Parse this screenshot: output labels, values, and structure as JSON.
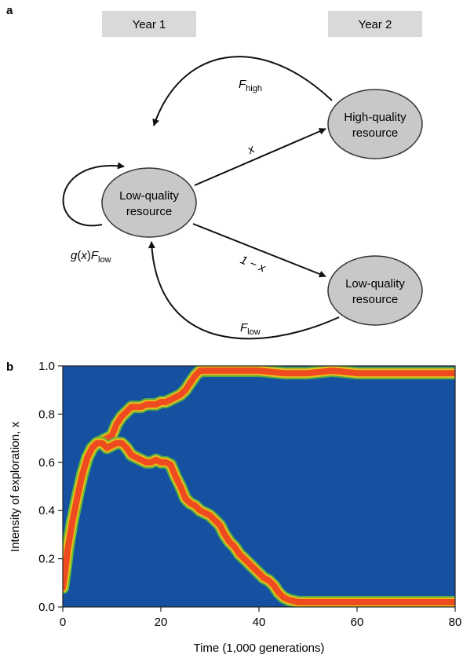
{
  "panel_a": {
    "label": "a",
    "year1": "Year 1",
    "year2": "Year 2",
    "nodes": {
      "low_left": [
        "Low-quality",
        "resource"
      ],
      "high_right": [
        "High-quality",
        "resource"
      ],
      "low_right": [
        "Low-quality",
        "resource"
      ]
    },
    "edges": {
      "f_high": {
        "main": "F",
        "sub": "high"
      },
      "x": "x",
      "one_minus_x": "1 − x",
      "f_low": {
        "main": "F",
        "sub": "low"
      },
      "self_loop": {
        "g": "g",
        "paren_open": "(",
        "x": "x",
        "paren_close": ")",
        "main": "F",
        "sub": "low"
      }
    },
    "colors": {
      "node_fill": "#c8c8c8",
      "year_box": "#d9d9d9"
    }
  },
  "panel_b": {
    "label": "b",
    "colors": {
      "background": "#1650a0",
      "density_high": "#ef4b20",
      "density_edge": "#e8c01a",
      "density_fringe": "#5dbb3a"
    }
  },
  "chart_data": {
    "type": "line",
    "xlabel": "Time (1,000 generations)",
    "ylabel": "Intensity of exploration, x",
    "xlim": [
      0,
      80
    ],
    "ylim": [
      0,
      1.0
    ],
    "x_ticks": [
      "0",
      "20",
      "40",
      "60",
      "80"
    ],
    "y_ticks": [
      "0.0",
      "0.2",
      "0.4",
      "0.6",
      "0.8",
      "1.0"
    ],
    "series": [
      {
        "x": [
          0,
          0.5,
          1,
          2,
          3,
          4,
          5,
          6,
          7,
          8,
          9,
          10,
          11,
          12,
          13,
          14,
          15,
          16,
          17,
          18,
          19,
          20,
          21,
          22,
          23,
          24,
          25,
          26,
          27,
          28,
          29,
          30,
          35,
          40,
          45,
          50,
          55,
          60,
          65,
          70,
          75,
          80
        ],
        "y": [
          0.08,
          0.15,
          0.24,
          0.36,
          0.46,
          0.55,
          0.62,
          0.66,
          0.68,
          0.69,
          0.7,
          0.71,
          0.76,
          0.79,
          0.81,
          0.83,
          0.83,
          0.83,
          0.84,
          0.84,
          0.84,
          0.85,
          0.85,
          0.86,
          0.87,
          0.88,
          0.9,
          0.93,
          0.96,
          0.98,
          0.98,
          0.98,
          0.98,
          0.98,
          0.97,
          0.97,
          0.98,
          0.97,
          0.97,
          0.97,
          0.97,
          0.97
        ]
      },
      {
        "x": [
          0,
          0.5,
          1,
          2,
          3,
          4,
          5,
          6,
          7,
          8,
          9,
          10,
          11,
          12,
          13,
          14,
          15,
          16,
          17,
          18,
          19,
          20,
          21,
          22,
          23,
          24,
          25,
          26,
          27,
          28,
          29,
          30,
          31,
          32,
          33,
          34,
          35,
          36,
          37,
          38,
          39,
          40,
          41,
          42,
          43,
          44,
          45,
          46,
          48,
          50,
          55,
          60,
          65,
          70,
          75,
          80
        ],
        "y": [
          0.08,
          0.15,
          0.24,
          0.36,
          0.46,
          0.55,
          0.62,
          0.66,
          0.68,
          0.68,
          0.66,
          0.67,
          0.68,
          0.68,
          0.66,
          0.63,
          0.62,
          0.61,
          0.6,
          0.6,
          0.61,
          0.6,
          0.6,
          0.59,
          0.54,
          0.5,
          0.45,
          0.43,
          0.42,
          0.4,
          0.39,
          0.38,
          0.36,
          0.34,
          0.3,
          0.27,
          0.25,
          0.22,
          0.2,
          0.18,
          0.16,
          0.14,
          0.12,
          0.11,
          0.09,
          0.06,
          0.04,
          0.03,
          0.02,
          0.02,
          0.02,
          0.02,
          0.02,
          0.02,
          0.02,
          0.02
        ]
      }
    ]
  }
}
